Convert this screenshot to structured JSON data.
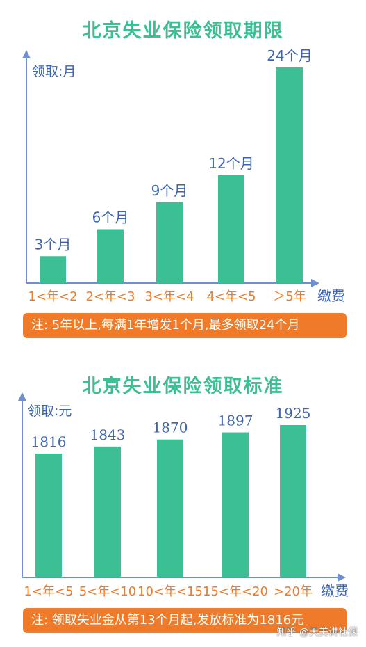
{
  "chart_data": [
    {
      "type": "bar",
      "title": "北京失业保险领取期限",
      "ylabel": "领取:月",
      "xlabel": "缴费",
      "categories": [
        "1<年<2",
        "2<年<3",
        "3<年<4",
        "4<年<5",
        "＞5年"
      ],
      "values": [
        3,
        6,
        9,
        12,
        24
      ],
      "data_labels": [
        "3个月",
        "6个月",
        "9个月",
        "12个月",
        "24个月"
      ],
      "ylim": [
        0,
        24
      ],
      "bar_color": "#3cbf94",
      "axis_color": "#6f8fd0",
      "note": "注: 5年以上,每满1年增发1个月,最多领取24个月"
    },
    {
      "type": "bar",
      "title": "北京失业保险领取标准",
      "ylabel": "领取:元",
      "xlabel": "缴费",
      "categories": [
        "1<年<5",
        "5<年<10",
        "10<年<15",
        "15<年<20",
        ">20年"
      ],
      "values": [
        1816,
        1843,
        1870,
        1897,
        1925
      ],
      "data_labels": [
        "1816",
        "1843",
        "1870",
        "1897",
        "1925"
      ],
      "bar_color": "#3cbf94",
      "axis_color": "#6f8fd0",
      "note": "注: 领取失业金从第13个月起,发放标准为1816元"
    }
  ],
  "watermark": "知乎 @天美讲社保"
}
